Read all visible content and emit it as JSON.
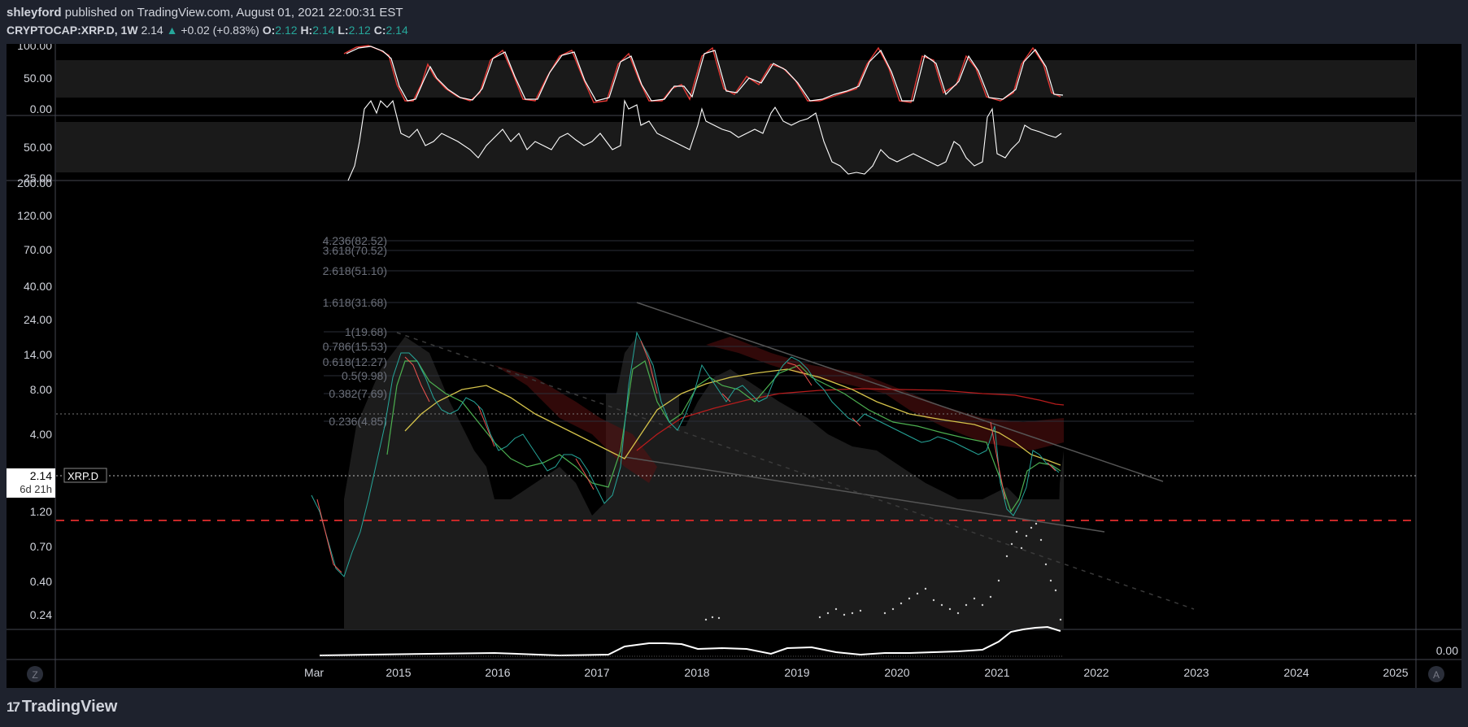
{
  "header": {
    "author": "shleyford",
    "published_text": "published on TradingView.com, August 01, 2021 22:00:31 EST",
    "symbol": "CRYPTOCAP:XRP.D, 1W",
    "last": "2.14",
    "up_arrow": "▲",
    "change": "+0.02 (+0.83%)",
    "o_label": "O:",
    "o_value": "2.12",
    "h_label": "H:",
    "h_value": "2.14",
    "l_label": "L:",
    "l_value": "2.12",
    "c_label": "C:",
    "c_value": "2.14"
  },
  "oscillator_top": {
    "ticks": [
      "100.00",
      "50.00",
      "0.00"
    ]
  },
  "oscillator_mid": {
    "ticks": [
      "50.00",
      "25.00"
    ]
  },
  "price_axis": {
    "ticks": [
      "200.00",
      "120.00",
      "70.00",
      "40.00",
      "24.00",
      "14.00",
      "8.00",
      "4.00",
      "1.20",
      "0.70",
      "0.40",
      "0.24"
    ]
  },
  "price_label": {
    "value": "2.14",
    "countdown": "6d 21h",
    "symbol": "XRP.D"
  },
  "fib_levels": [
    "4.236(82.52)",
    "3.618(70.52)",
    "2.618(51.10)",
    "1.618(31.68)",
    "1(19.68)",
    "0.786(15.53)",
    "0.618(12.27)",
    "0.5(9.98)",
    "0.382(7.69)",
    "0.236(4.85)"
  ],
  "volume_axis": {
    "tick": "0.00"
  },
  "time_axis": {
    "labels": [
      "Mar",
      "2015",
      "2016",
      "2017",
      "2018",
      "2019",
      "2020",
      "2021",
      "2022",
      "2023",
      "2024",
      "2025"
    ]
  },
  "buttons": {
    "z": "Z",
    "a": "A"
  },
  "footer": {
    "brand": "TradingView",
    "logo": "17"
  },
  "colors": {
    "background": "#000000",
    "frame": "#1e222d",
    "up": "#26a69a",
    "down": "#ef5350",
    "ma_yellow": "#d4c24a",
    "ma_green": "#4caf50",
    "ma_red": "#b71c1c"
  }
}
